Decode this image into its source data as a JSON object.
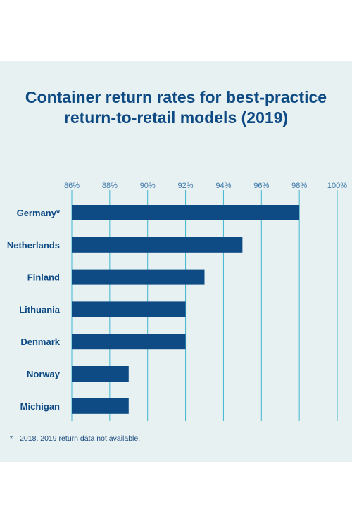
{
  "title_lines": [
    "Container return rates for best-practice",
    "return-to-retail models (2019)"
  ],
  "footnote": {
    "marker": "*",
    "text": "2018. 2019 return data not available."
  },
  "colors": {
    "bar": "#0e4a84",
    "grid": "#3fb6cf",
    "tick": "#3f79ac",
    "label": "#0e4a84",
    "background": "#e8f1f1"
  },
  "chart_data": {
    "type": "bar",
    "orientation": "horizontal",
    "categories": [
      "Germany*",
      "Netherlands",
      "Finland",
      "Lithuania",
      "Denmark",
      "Norway",
      "Michigan"
    ],
    "values": [
      98,
      95,
      93,
      92,
      92,
      89,
      89
    ],
    "unit": "%",
    "xlim": [
      86,
      100
    ],
    "xticks": [
      "86%",
      "88%",
      "90%",
      "92%",
      "94%",
      "96%",
      "98%",
      "100%"
    ],
    "grid": true,
    "xaxis_position": "top"
  }
}
